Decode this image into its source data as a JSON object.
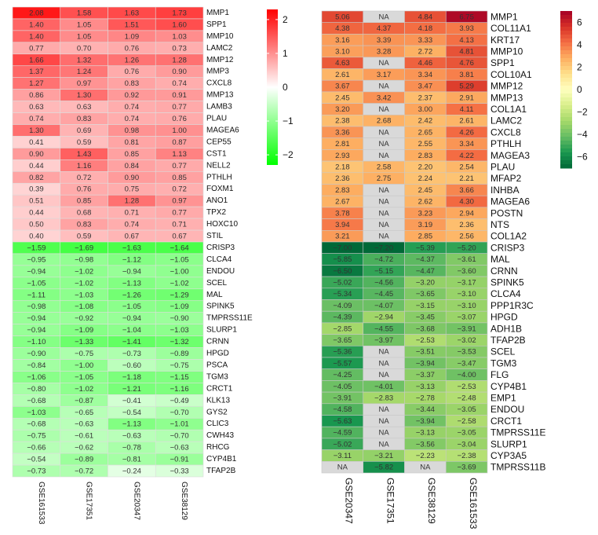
{
  "chart_data": [
    {
      "type": "heatmap",
      "columns": [
        "GSE161533",
        "GSE17351",
        "GSE20347",
        "GSE38129"
      ],
      "rows": [
        "MMP1",
        "SPP1",
        "MMP10",
        "LAMC2",
        "MMP12",
        "MMP3",
        "CXCL8",
        "MMP13",
        "LAMB3",
        "PLAU",
        "MAGEA6",
        "CEP55",
        "CST1",
        "NELL2",
        "PTHLH",
        "FOXM1",
        "ANO1",
        "TPX2",
        "HOXC10",
        "STIL",
        "CRISP3",
        "CLCA4",
        "ENDOU",
        "SCEL",
        "MAL",
        "SPINK5",
        "TMPRSS11E",
        "SLURP1",
        "CRNN",
        "HPGD",
        "PSCA",
        "TGM3",
        "CRCT1",
        "KLK13",
        "GYS2",
        "CLIC3",
        "CWH43",
        "RHCG",
        "CYP4B1",
        "TFAP2B"
      ],
      "values": [
        [
          2.08,
          1.58,
          1.63,
          1.73
        ],
        [
          1.4,
          1.05,
          1.51,
          1.6
        ],
        [
          1.4,
          1.05,
          1.09,
          1.03
        ],
        [
          0.77,
          0.7,
          0.76,
          0.73
        ],
        [
          1.66,
          1.32,
          1.26,
          1.28
        ],
        [
          1.37,
          1.24,
          0.76,
          0.9
        ],
        [
          1.27,
          0.97,
          0.83,
          0.74
        ],
        [
          0.86,
          1.3,
          0.92,
          0.91
        ],
        [
          0.63,
          0.63,
          0.74,
          0.77
        ],
        [
          0.74,
          0.83,
          0.74,
          0.76
        ],
        [
          1.3,
          0.69,
          0.98,
          1.0
        ],
        [
          0.41,
          0.59,
          0.81,
          0.87
        ],
        [
          0.9,
          1.43,
          0.85,
          1.13
        ],
        [
          0.44,
          1.16,
          0.84,
          0.77
        ],
        [
          0.82,
          0.72,
          0.9,
          0.85
        ],
        [
          0.39,
          0.76,
          0.75,
          0.72
        ],
        [
          0.51,
          0.85,
          1.28,
          0.97
        ],
        [
          0.44,
          0.68,
          0.71,
          0.77
        ],
        [
          0.5,
          0.83,
          0.74,
          0.71
        ],
        [
          0.4,
          0.59,
          0.67,
          0.67
        ],
        [
          -1.59,
          -1.69,
          -1.63,
          -1.64
        ],
        [
          -0.95,
          -0.98,
          -1.12,
          -1.05
        ],
        [
          -0.94,
          -1.02,
          -0.94,
          -1.0
        ],
        [
          -1.05,
          -1.02,
          -1.13,
          -1.02
        ],
        [
          -1.11,
          -1.03,
          -1.26,
          -1.29
        ],
        [
          -0.98,
          -1.08,
          -1.05,
          -1.09
        ],
        [
          -0.94,
          -0.92,
          -0.94,
          -0.9
        ],
        [
          -0.94,
          -1.09,
          -1.04,
          -1.03
        ],
        [
          -1.1,
          -1.33,
          -1.41,
          -1.32
        ],
        [
          -0.9,
          -0.75,
          -0.73,
          -0.89
        ],
        [
          -0.84,
          -1.0,
          -0.6,
          -0.75
        ],
        [
          -1.06,
          -1.05,
          -1.18,
          -1.15
        ],
        [
          -0.8,
          -1.02,
          -1.21,
          -1.16
        ],
        [
          -0.68,
          -0.87,
          -0.41,
          -0.49
        ],
        [
          -1.03,
          -0.65,
          -0.54,
          -0.7
        ],
        [
          -0.68,
          -0.63,
          -1.13,
          -1.01
        ],
        [
          -0.75,
          -0.61,
          -0.63,
          -0.7
        ],
        [
          -0.66,
          -0.62,
          -0.78,
          -0.63
        ],
        [
          -0.54,
          -0.89,
          -0.81,
          -0.91
        ],
        [
          -0.73,
          -0.72,
          -0.24,
          -0.33
        ]
      ],
      "value_labels": [
        [
          "2.08",
          "1.58",
          "1.63",
          "1.73"
        ],
        [
          "1.40",
          "1.05",
          "1.51",
          "1.60"
        ],
        [
          "1.40",
          "1.05",
          "1.09",
          "1.03"
        ],
        [
          "0.77",
          "0.70",
          "0.76",
          "0.73"
        ],
        [
          "1.66",
          "1.32",
          "1.26",
          "1.28"
        ],
        [
          "1.37",
          "1.24",
          "0.76",
          "0.90"
        ],
        [
          "1.27",
          "0.97",
          "0.83",
          "0.74"
        ],
        [
          "0.86",
          "1.30",
          "0.92",
          "0.91"
        ],
        [
          "0.63",
          "0.63",
          "0.74",
          "0.77"
        ],
        [
          "0.74",
          "0.83",
          "0.74",
          "0.76"
        ],
        [
          "1.30",
          "0.69",
          "0.98",
          "1.00"
        ],
        [
          "0.41",
          "0.59",
          "0.81",
          "0.87"
        ],
        [
          "0.90",
          "1.43",
          "0.85",
          "1.13"
        ],
        [
          "0.44",
          "1.16",
          "0.84",
          "0.77"
        ],
        [
          "0.82",
          "0.72",
          "0.90",
          "0.85"
        ],
        [
          "0.39",
          "0.76",
          "0.75",
          "0.72"
        ],
        [
          "0.51",
          "0.85",
          "1.28",
          "0.97"
        ],
        [
          "0.44",
          "0.68",
          "0.71",
          "0.77"
        ],
        [
          "0.50",
          "0.83",
          "0.74",
          "0.71"
        ],
        [
          "0.40",
          "0.59",
          "0.67",
          "0.67"
        ],
        [
          "−1.59",
          "−1.69",
          "−1.63",
          "−1.64"
        ],
        [
          "−0.95",
          "−0.98",
          "−1.12",
          "−1.05"
        ],
        [
          "−0.94",
          "−1.02",
          "−0.94",
          "−1.00"
        ],
        [
          "−1.05",
          "−1.02",
          "−1.13",
          "−1.02"
        ],
        [
          "−1.11",
          "−1.03",
          "−1.26",
          "−1.29"
        ],
        [
          "−0.98",
          "−1.08",
          "−1.05",
          "−1.09"
        ],
        [
          "−0.94",
          "−0.92",
          "−0.94",
          "−0.90"
        ],
        [
          "−0.94",
          "−1.09",
          "−1.04",
          "−1.03"
        ],
        [
          "−1.10",
          "−1.33",
          "−1.41",
          "−1.32"
        ],
        [
          "−0.90",
          "−0.75",
          "−0.73",
          "−0.89"
        ],
        [
          "−0.84",
          "−1.00",
          "−0.60",
          "−0.75"
        ],
        [
          "−1.06",
          "−1.05",
          "−1.18",
          "−1.15"
        ],
        [
          "−0.80",
          "−1.02",
          "−1.21",
          "−1.16"
        ],
        [
          "−0.68",
          "−0.87",
          "−0.41",
          "−0.49"
        ],
        [
          "−1.03",
          "−0.65",
          "−0.54",
          "−0.70"
        ],
        [
          "−0.68",
          "−0.63",
          "−1.13",
          "−1.01"
        ],
        [
          "−0.75",
          "−0.61",
          "−0.63",
          "−0.70"
        ],
        [
          "−0.66",
          "−0.62",
          "−0.78",
          "−0.63"
        ],
        [
          "−0.54",
          "−0.89",
          "−0.81",
          "−0.91"
        ],
        [
          "−0.73",
          "−0.72",
          "−0.24",
          "−0.33"
        ]
      ],
      "legend": {
        "ticks": [
          "2",
          "1",
          "0",
          "−1",
          "−2"
        ],
        "range": [
          -2.3,
          2.3
        ],
        "colors": {
          "low": "#00ff00",
          "mid": "#ffffff",
          "high": "#ff0000"
        }
      }
    },
    {
      "type": "heatmap",
      "columns": [
        "GSE20347",
        "GSE17351",
        "GSE38129",
        "GSE161533"
      ],
      "rows": [
        "MMP1",
        "COL11A1",
        "KRT17",
        "MMP10",
        "SPP1",
        "COL10A1",
        "MMP12",
        "MMP13",
        "COL1A1",
        "LAMC2",
        "CXCL8",
        "PTHLH",
        "MAGEA3",
        "PLAU",
        "MFAP2",
        "INHBA",
        "MAGEA6",
        "POSTN",
        "NTS",
        "COL1A2",
        "CRISP3",
        "MAL",
        "CRNN",
        "SPINK5",
        "CLCA4",
        "PPP1R3C",
        "HPGD",
        "ADH1B",
        "TFAP2B",
        "SCEL",
        "TGM3",
        "FLG",
        "CYP4B1",
        "EMP1",
        "ENDOU",
        "CRCT1",
        "TMPRSS11E",
        "SLURP1",
        "CYP3A5",
        "TMPRSS11B"
      ],
      "values": [
        [
          5.06,
          null,
          4.84,
          6.75
        ],
        [
          4.38,
          4.37,
          4.18,
          3.93
        ],
        [
          3.16,
          3.39,
          3.33,
          4.13
        ],
        [
          3.1,
          3.28,
          2.72,
          4.81
        ],
        [
          4.63,
          null,
          4.46,
          4.76
        ],
        [
          2.61,
          3.17,
          3.34,
          3.81
        ],
        [
          3.67,
          null,
          3.47,
          5.29
        ],
        [
          2.45,
          3.42,
          2.37,
          2.91
        ],
        [
          3.2,
          null,
          3.0,
          4.11
        ],
        [
          2.38,
          2.68,
          2.42,
          2.61
        ],
        [
          3.36,
          null,
          2.65,
          4.26
        ],
        [
          2.81,
          null,
          2.55,
          3.34
        ],
        [
          2.93,
          null,
          2.83,
          4.22
        ],
        [
          2.18,
          2.58,
          2.2,
          2.54
        ],
        [
          2.36,
          2.75,
          2.24,
          2.21
        ],
        [
          2.83,
          null,
          2.45,
          3.66
        ],
        [
          2.67,
          null,
          2.62,
          4.3
        ],
        [
          3.78,
          null,
          3.23,
          2.94
        ],
        [
          3.94,
          null,
          3.19,
          2.36
        ],
        [
          3.21,
          null,
          2.85,
          2.56
        ],
        [
          -7.0,
          -7.2,
          -5.39,
          -5.2
        ],
        [
          -5.85,
          -4.72,
          -4.37,
          -3.61
        ],
        [
          -6.5,
          -5.15,
          -4.47,
          -3.6
        ],
        [
          -5.02,
          -4.56,
          -3.2,
          -3.17
        ],
        [
          -5.34,
          -4.45,
          -3.65,
          -3.1
        ],
        [
          -4.09,
          -4.07,
          -3.15,
          -3.1
        ],
        [
          -4.39,
          -2.94,
          -3.45,
          -3.07
        ],
        [
          -2.85,
          -4.55,
          -3.68,
          -3.91
        ],
        [
          -3.65,
          -3.97,
          -2.53,
          -3.02
        ],
        [
          -5.36,
          null,
          -3.51,
          -3.53
        ],
        [
          -5.57,
          null,
          -3.94,
          -3.47
        ],
        [
          -4.25,
          null,
          -3.37,
          -4.0
        ],
        [
          -4.05,
          -4.01,
          -3.13,
          -2.53
        ],
        [
          -3.91,
          -2.83,
          -2.78,
          -2.48
        ],
        [
          -4.58,
          null,
          -3.44,
          -3.05
        ],
        [
          -5.63,
          null,
          -3.94,
          -2.58
        ],
        [
          -4.59,
          null,
          -3.13,
          -3.05
        ],
        [
          -5.02,
          null,
          -3.56,
          -3.04
        ],
        [
          -3.11,
          -3.21,
          -2.23,
          -2.38
        ],
        [
          null,
          -5.82,
          null,
          -3.69
        ]
      ],
      "value_labels": [
        [
          "5.06",
          "NA",
          "4.84",
          "6.75"
        ],
        [
          "4.38",
          "4.37",
          "4.18",
          "3.93"
        ],
        [
          "3.16",
          "3.39",
          "3.33",
          "4.13"
        ],
        [
          "3.10",
          "3.28",
          "2.72",
          "4.81"
        ],
        [
          "4.63",
          "NA",
          "4.46",
          "4.76"
        ],
        [
          "2.61",
          "3.17",
          "3.34",
          "3.81"
        ],
        [
          "3.67",
          "NA",
          "3.47",
          "5.29"
        ],
        [
          "2.45",
          "3.42",
          "2.37",
          "2.91"
        ],
        [
          "3.20",
          "NA",
          "3.00",
          "4.11"
        ],
        [
          "2.38",
          "2.68",
          "2.42",
          "2.61"
        ],
        [
          "3.36",
          "NA",
          "2.65",
          "4.26"
        ],
        [
          "2.81",
          "NA",
          "2.55",
          "3.34"
        ],
        [
          "2.93",
          "NA",
          "2.83",
          "4.22"
        ],
        [
          "2.18",
          "2.58",
          "2.20",
          "2.54"
        ],
        [
          "2.36",
          "2.75",
          "2.24",
          "2.21"
        ],
        [
          "2.83",
          "NA",
          "2.45",
          "3.66"
        ],
        [
          "2.67",
          "NA",
          "2.62",
          "4.30"
        ],
        [
          "3.78",
          "NA",
          "3.23",
          "2.94"
        ],
        [
          "3.94",
          "NA",
          "3.19",
          "2.36"
        ],
        [
          "3.21",
          "NA",
          "2.85",
          "2.56"
        ],
        [
          "−7.00",
          "−7.20",
          "−5.39",
          "−5.20"
        ],
        [
          "−5.85",
          "−4.72",
          "−4.37",
          "−3.61"
        ],
        [
          "−6.50",
          "−5.15",
          "−4.47",
          "−3.60"
        ],
        [
          "−5.02",
          "−4.56",
          "−3.20",
          "−3.17"
        ],
        [
          "−5.34",
          "−4.45",
          "−3.65",
          "−3.10"
        ],
        [
          "−4.09",
          "−4.07",
          "−3.15",
          "−3.10"
        ],
        [
          "−4.39",
          "−2.94",
          "−3.45",
          "−3.07"
        ],
        [
          "−2.85",
          "−4.55",
          "−3.68",
          "−3.91"
        ],
        [
          "−3.65",
          "−3.97",
          "−2.53",
          "−3.02"
        ],
        [
          "−5.36",
          "NA",
          "−3.51",
          "−3.53"
        ],
        [
          "−5.57",
          "NA",
          "−3.94",
          "−3.47"
        ],
        [
          "−4.25",
          "NA",
          "−3.37",
          "−4.00"
        ],
        [
          "−4.05",
          "−4.01",
          "−3.13",
          "−2.53"
        ],
        [
          "−3.91",
          "−2.83",
          "−2.78",
          "−2.48"
        ],
        [
          "−4.58",
          "NA",
          "−3.44",
          "−3.05"
        ],
        [
          "−5.63",
          "NA",
          "−3.94",
          "−2.58"
        ],
        [
          "−4.59",
          "NA",
          "−3.13",
          "−3.05"
        ],
        [
          "−5.02",
          "NA",
          "−3.56",
          "−3.04"
        ],
        [
          "−3.11",
          "−3.21",
          "−2.23",
          "−2.38"
        ],
        [
          "NA",
          "−5.82",
          "NA",
          "−3.69"
        ]
      ],
      "na_color": "#d9d9d9",
      "legend": {
        "ticks": [
          "6",
          "4",
          "2",
          "0",
          "−2",
          "−4",
          "−6"
        ],
        "tick_values": [
          6,
          4,
          2,
          0,
          -2,
          -4,
          -6
        ],
        "range": [
          -7,
          7
        ],
        "colors": [
          "#a50026",
          "#d73027",
          "#f46d43",
          "#fdae61",
          "#fee08b",
          "#ffffbf",
          "#d9ef8b",
          "#a6d96a",
          "#66bd63",
          "#1a9850",
          "#006837"
        ]
      }
    }
  ]
}
